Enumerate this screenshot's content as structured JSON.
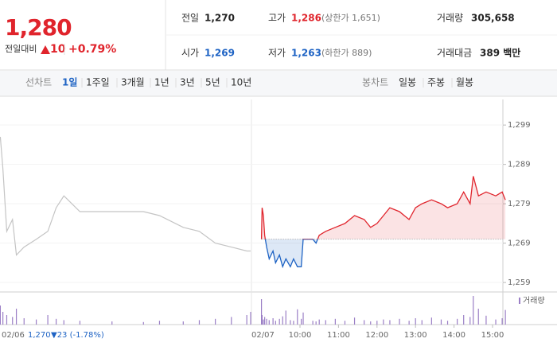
{
  "header": {
    "price": "1,280",
    "change_label": "전일대비",
    "change": "10",
    "change_rate": "+0.79%",
    "stats": [
      {
        "label": "전일",
        "value": "1,270"
      },
      {
        "label": "고가",
        "value": "1,286",
        "note": "(상한가 1,651)"
      },
      {
        "label": "거래량",
        "value": "305,658"
      },
      {
        "label": "시가",
        "value": "1,269"
      },
      {
        "label": "저가",
        "value": "1,263",
        "note": "(하한가 889)"
      },
      {
        "label": "거래대금",
        "value": "389 백만"
      }
    ]
  },
  "toolbar": {
    "line_label": "선차트",
    "line_tabs": [
      "1일",
      "1주일",
      "3개월",
      "1년",
      "3년",
      "5년",
      "10년"
    ],
    "candle_label": "봉차트",
    "candle_tabs": [
      "일봉",
      "주봉",
      "월봉"
    ]
  },
  "chart_data": {
    "type": "line",
    "ylim": [
      1257,
      1305.5
    ],
    "yticks": [
      {
        "value": 1259,
        "label": "1,259"
      },
      {
        "value": 1269,
        "label": "1,269"
      },
      {
        "value": 1279,
        "label": "1,279"
      },
      {
        "value": 1289,
        "label": "1,289"
      },
      {
        "value": 1299,
        "label": "1,299"
      }
    ],
    "xticks": [
      "10:00",
      "11:00",
      "12:00",
      "13:00",
      "14:00",
      "15:00"
    ],
    "baseline": {
      "value": 1270,
      "label": "1,270"
    },
    "prev_change": "▼23 (-1.78%)",
    "volume_name": "거래량",
    "volume_color": "#9b7fc6",
    "up_color": "#e0242c",
    "down_color": "#1e63c4",
    "prev_color": "#c4c4c4",
    "series": [
      {
        "name": "02/06",
        "x": [
          "09:00",
          "09:04",
          "09:10",
          "09:19",
          "09:25",
          "09:37",
          "09:56",
          "10:14",
          "10:27",
          "10:39",
          "11:04",
          "11:54",
          "12:43",
          "13:08",
          "13:45",
          "14:10",
          "14:35",
          "15:00",
          "15:24",
          "15:30"
        ],
        "values": [
          1296,
          1288,
          1272,
          1275,
          1266,
          1268,
          1270,
          1272,
          1278,
          1281,
          1277,
          1277,
          1277,
          1276,
          1273,
          1272,
          1269,
          1268,
          1267,
          1267
        ],
        "volume": [
          3000,
          2000,
          1500,
          1200,
          2500,
          1000,
          800,
          1500,
          900,
          700,
          600,
          500,
          400,
          600,
          500,
          700,
          900,
          1200,
          1500,
          2000
        ]
      },
      {
        "name": "02/07",
        "x": [
          "09:00",
          "09:01",
          "09:03",
          "09:05",
          "09:08",
          "09:12",
          "09:18",
          "09:22",
          "09:28",
          "09:33",
          "09:38",
          "09:45",
          "09:50",
          "09:56",
          "10:02",
          "10:05",
          "10:20",
          "10:25",
          "10:30",
          "10:40",
          "10:55",
          "11:10",
          "11:25",
          "11:40",
          "11:50",
          "12:00",
          "12:10",
          "12:20",
          "12:35",
          "12:50",
          "13:00",
          "13:10",
          "13:25",
          "13:40",
          "13:50",
          "14:05",
          "14:15",
          "14:25",
          "14:30",
          "14:38",
          "14:50",
          "15:05",
          "15:15",
          "15:20"
        ],
        "values": [
          1270,
          1278,
          1276,
          1271,
          1268,
          1265,
          1267,
          1264,
          1266,
          1263,
          1265,
          1263,
          1265,
          1263,
          1263,
          1270,
          1270,
          1269,
          1271,
          1272,
          1273,
          1274,
          1276,
          1275,
          1273,
          1274,
          1276,
          1278,
          1277,
          1275,
          1278,
          1279,
          1280,
          1279,
          1278,
          1279,
          1282,
          1279,
          1286,
          1281,
          1282,
          1281,
          1282,
          1280
        ],
        "volume": [
          4000,
          1500,
          800,
          1200,
          900,
          700,
          1000,
          600,
          900,
          1300,
          2200,
          700,
          600,
          2400,
          900,
          1900,
          600,
          500,
          800,
          700,
          900,
          600,
          1100,
          700,
          500,
          600,
          800,
          700,
          900,
          600,
          1000,
          700,
          1100,
          800,
          600,
          900,
          1500,
          1200,
          4500,
          2500,
          1400,
          800,
          1000,
          2300
        ]
      }
    ]
  }
}
